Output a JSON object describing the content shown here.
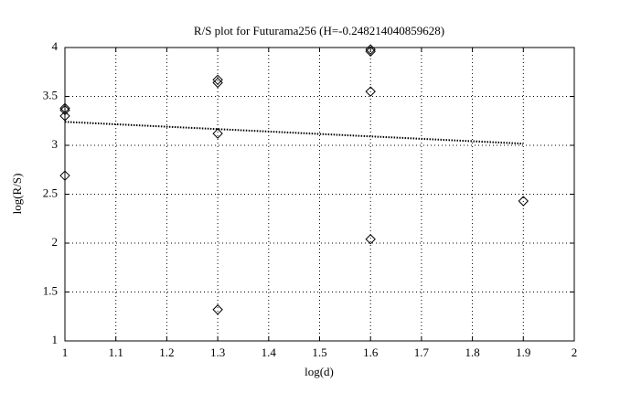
{
  "chart_data": {
    "type": "scatter",
    "title": "R/S plot for Futurama256 (H=-0.248214040859628)",
    "x_label": "log(d)",
    "y_label": "log(R/S)",
    "xlim": [
      1,
      2
    ],
    "xticks": [
      1,
      1.1,
      1.2,
      1.3,
      1.4,
      1.5,
      1.6,
      1.7,
      1.8,
      1.9,
      2
    ],
    "ylim": [
      1,
      4
    ],
    "yticks": [
      1,
      1.5,
      2,
      2.5,
      3,
      3.5,
      4
    ],
    "grid": true,
    "series": [
      {
        "marker": "diamond",
        "color": "#000000",
        "x": [
          1,
          1,
          1,
          1,
          1.3,
          1.3,
          1.3,
          1.3,
          1.6,
          1.6,
          1.6,
          1.6,
          1.9
        ],
        "values": [
          3.38,
          3.36,
          3.3,
          2.69,
          3.67,
          3.64,
          3.12,
          1.32,
          3.98,
          3.96,
          3.55,
          2.04,
          2.43
        ]
      },
      {
        "line": "dotted",
        "color": "#000000",
        "x": [
          1,
          1.9
        ],
        "values": [
          3.24,
          3.017
        ]
      }
    ]
  }
}
